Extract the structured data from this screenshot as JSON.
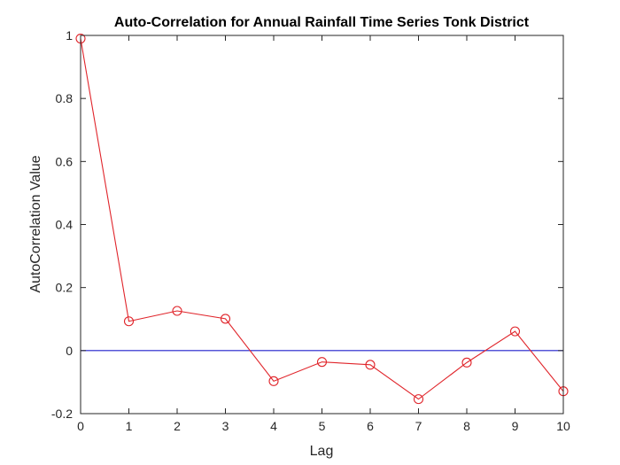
{
  "chart_data": {
    "type": "line",
    "title": "Auto-Correlation for Annual Rainfall Time Series Tonk District",
    "xlabel": "Lag",
    "ylabel": "AutoCorrelation Value",
    "xlim": [
      0,
      10
    ],
    "ylim": [
      -0.2,
      1
    ],
    "xticks": [
      0,
      1,
      2,
      3,
      4,
      5,
      6,
      7,
      8,
      9,
      10
    ],
    "yticks": [
      -0.2,
      0,
      0.2,
      0.4,
      0.6,
      0.8,
      1
    ],
    "grid": false,
    "series": [
      {
        "x": [
          0,
          1,
          2,
          3,
          4,
          5,
          6,
          7,
          8,
          9,
          10
        ],
        "values": [
          0.99,
          0.093,
          0.126,
          0.101,
          -0.097,
          -0.036,
          -0.045,
          -0.154,
          -0.038,
          0.061,
          -0.129
        ],
        "color": "#e0242a",
        "marker": "circle"
      }
    ],
    "reference_line": {
      "y": 0,
      "color": "#1f1fcc"
    }
  }
}
